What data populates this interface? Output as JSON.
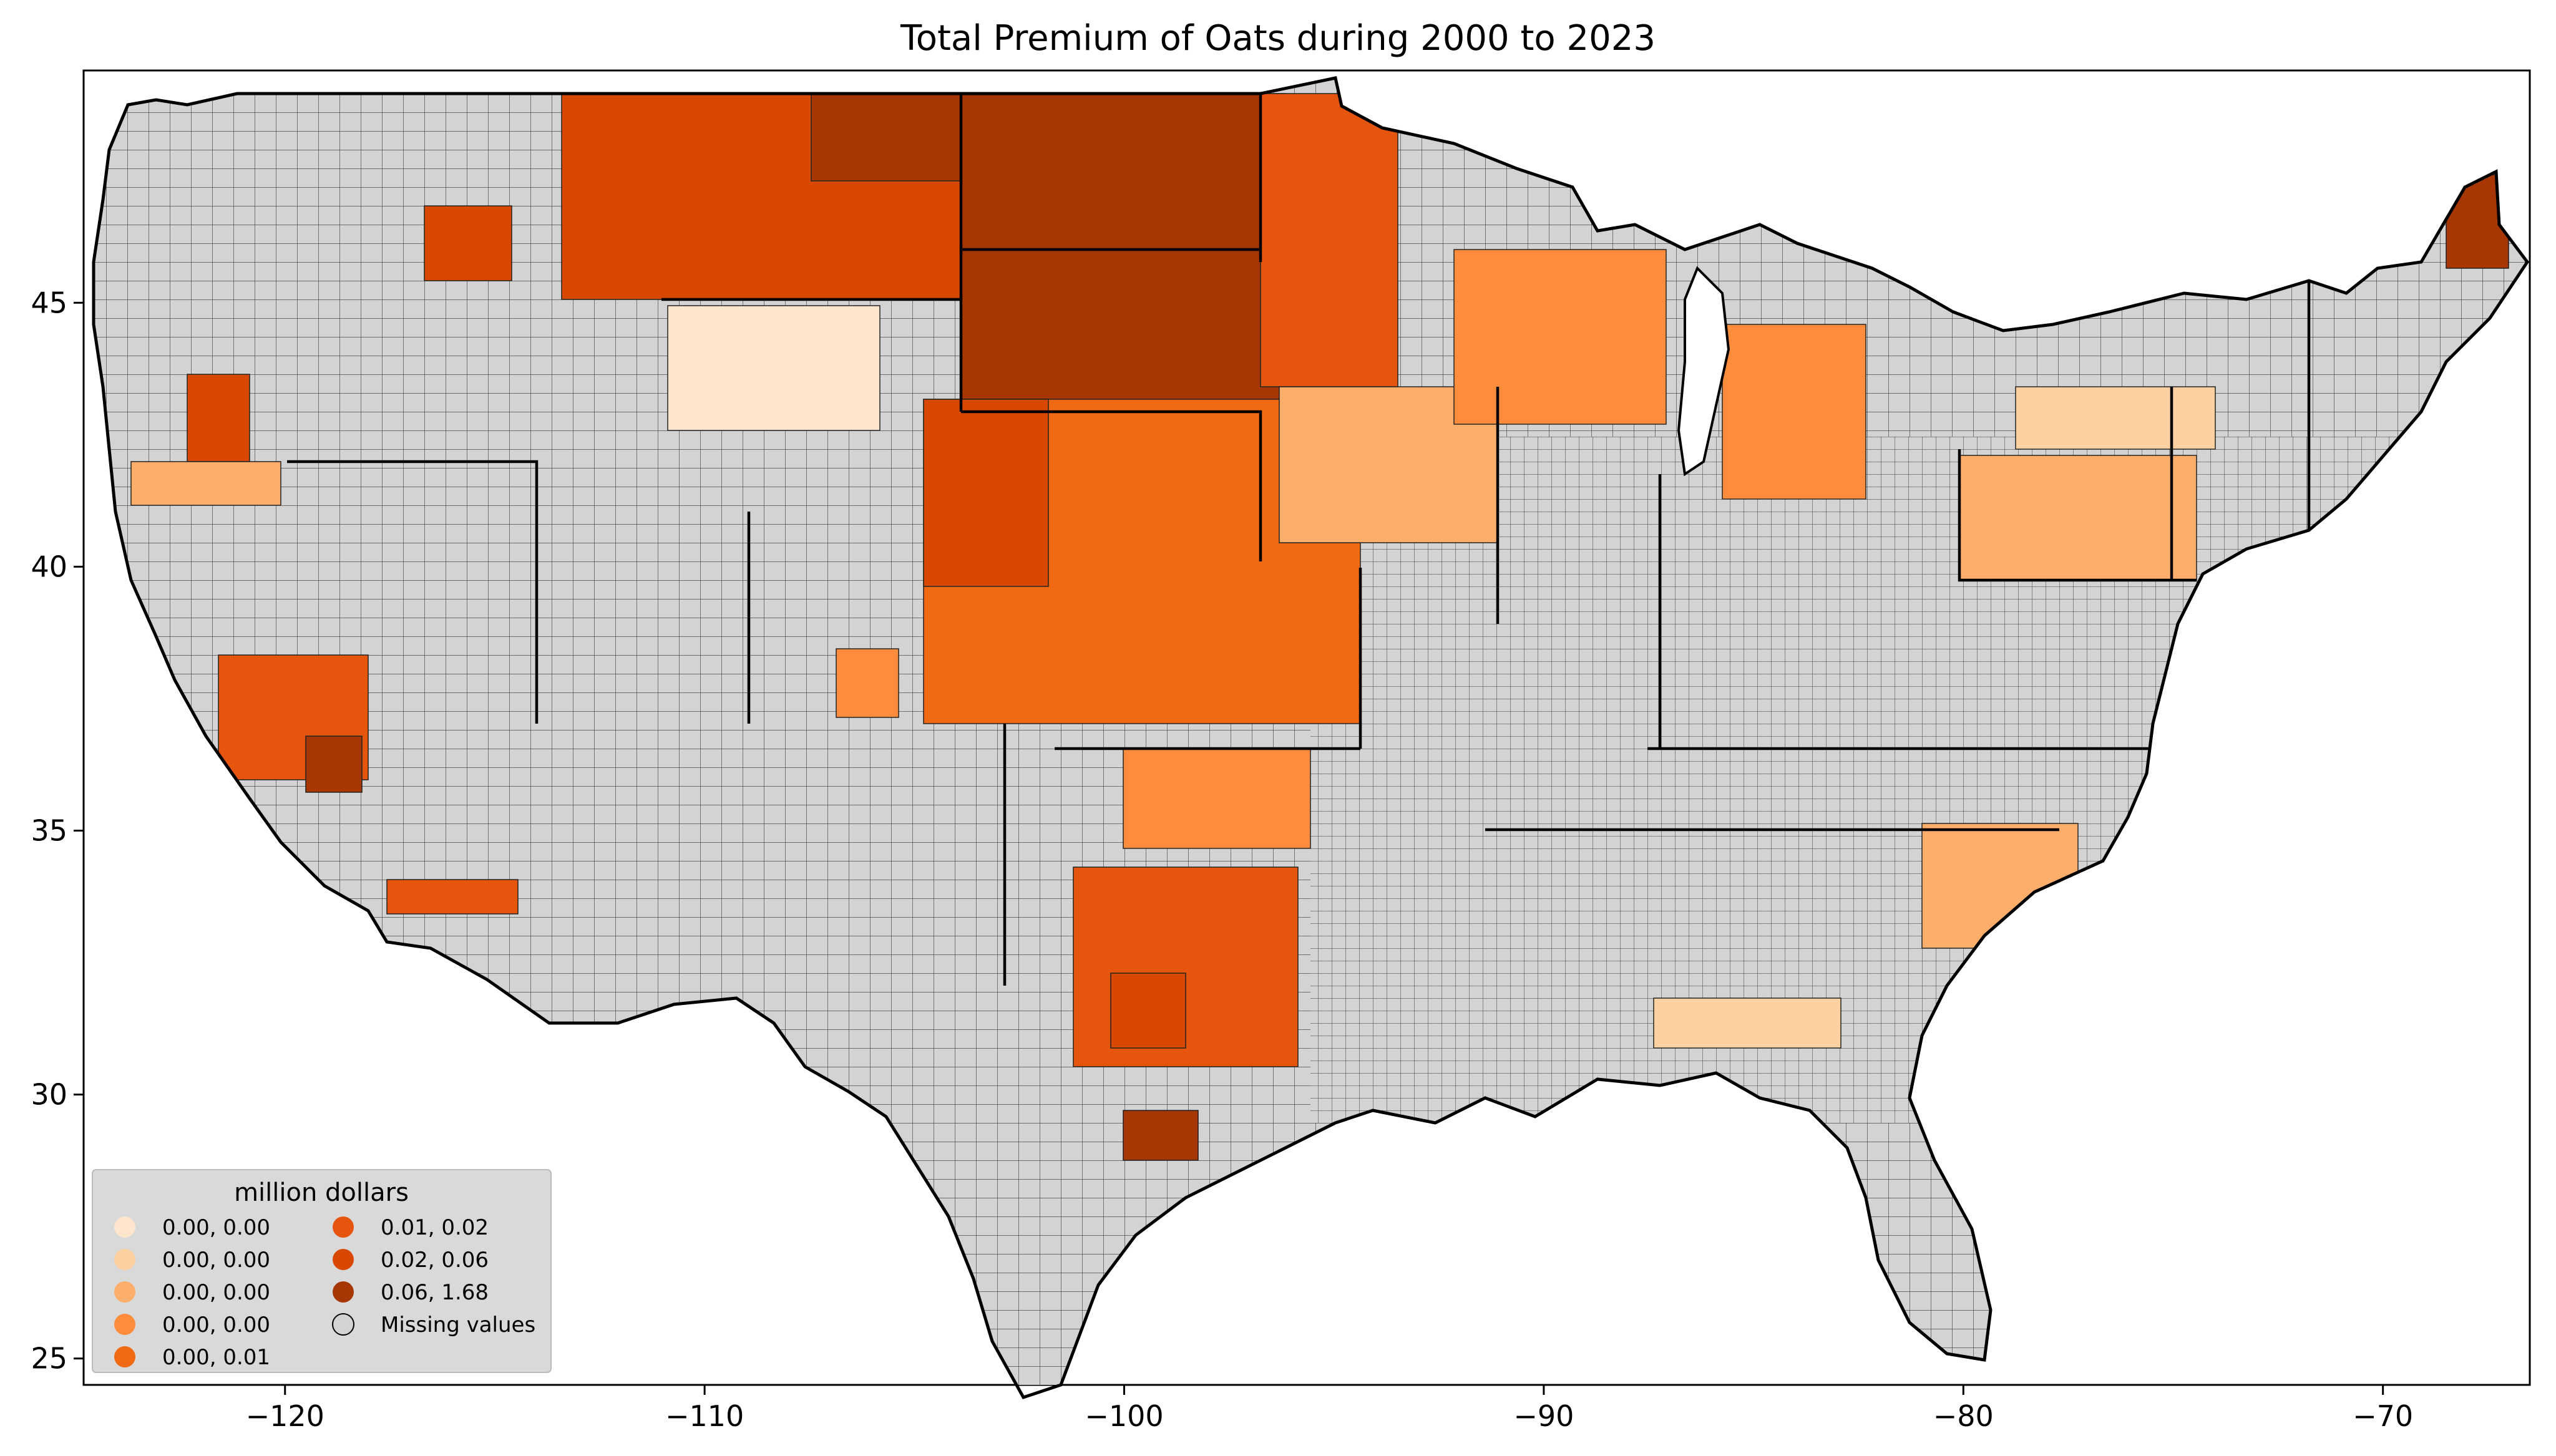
{
  "title": "Total  Premium of Oats during 2000 to 2023",
  "axes": {
    "x_ticks": [
      {
        "value": -120,
        "label": "−120"
      },
      {
        "value": -110,
        "label": "−110"
      },
      {
        "value": -100,
        "label": "−100"
      },
      {
        "value": -90,
        "label": "−90"
      },
      {
        "value": -80,
        "label": "−80"
      },
      {
        "value": -70,
        "label": "−70"
      }
    ],
    "y_ticks": [
      {
        "value": 25,
        "label": "25"
      },
      {
        "value": 30,
        "label": "30"
      },
      {
        "value": 35,
        "label": "35"
      },
      {
        "value": 40,
        "label": "40"
      },
      {
        "value": 45,
        "label": "45"
      }
    ],
    "xlim": [
      -124.8,
      -66.5
    ],
    "ylim": [
      24.5,
      49.4
    ]
  },
  "legend": {
    "title": "million dollars",
    "placement": "lower-left",
    "items": [
      {
        "label": "0.00, 0.00",
        "color": "#fee6ce"
      },
      {
        "label": "0.00, 0.00",
        "color": "#fdd0a2"
      },
      {
        "label": "0.00, 0.00",
        "color": "#fdae6b"
      },
      {
        "label": "0.00, 0.00",
        "color": "#fd8d3c"
      },
      {
        "label": "0.00, 0.01",
        "color": "#f16913"
      },
      {
        "label": "0.01, 0.02",
        "color": "#e6550d"
      },
      {
        "label": "0.02, 0.06",
        "color": "#d94801"
      },
      {
        "label": "0.06, 1.68",
        "color": "#a63603"
      },
      {
        "label": "Missing values",
        "color": "#d3d3d3"
      }
    ]
  },
  "colors": {
    "missing": "#d3d3d3",
    "state_border": "#000000",
    "county_border": "#222222",
    "background": "#ffffff"
  }
}
